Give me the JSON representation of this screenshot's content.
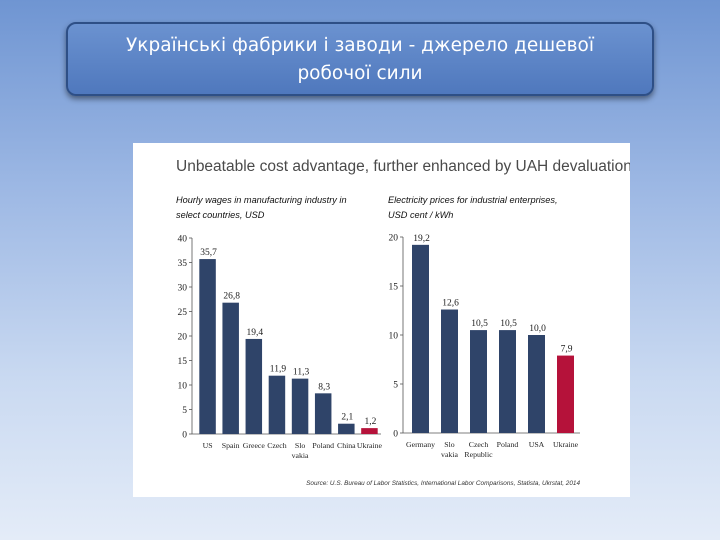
{
  "slide": {
    "title_line1": "Українські фабрики і заводи - джерело дешевої",
    "title_line2": "робочої сили"
  },
  "figure": {
    "headline": "Unbeatable cost advantage, further enhanced by UAH devaluation",
    "source": "Source: U.S. Bureau of Labor Statistics, International Labor Comparisons, Statista, Ukrstat, 2014"
  },
  "colors": {
    "navy": "#2f4469",
    "red": "#b5123a",
    "headline": "#4a4a4a"
  },
  "chart_data": [
    {
      "type": "bar",
      "title_line1": "Hourly wages in manufacturing industry in",
      "title_line2": "select countries, USD",
      "categories": [
        "US",
        "Spain",
        "Greece",
        "Czech",
        "Slovakia",
        "Poland",
        "China",
        "Ukraine"
      ],
      "category_lines": [
        [
          "US"
        ],
        [
          "Spain"
        ],
        [
          "Greece"
        ],
        [
          "Czech"
        ],
        [
          "Slo",
          "vakia"
        ],
        [
          "Poland"
        ],
        [
          "China"
        ],
        [
          "Ukraine"
        ]
      ],
      "values": [
        35.7,
        26.8,
        19.4,
        11.9,
        11.3,
        8.3,
        2.1,
        1.2
      ],
      "value_labels": [
        "35,7",
        "26,8",
        "19,4",
        "11,9",
        "11,3",
        "8,3",
        "2,1",
        "1,2"
      ],
      "highlight_index": 7,
      "ylim": [
        0,
        40
      ],
      "yticks": [
        0,
        5,
        10,
        15,
        20,
        25,
        30,
        35,
        40
      ]
    },
    {
      "type": "bar",
      "title_line1": "Electricity prices for industrial enterprises,",
      "title_line2": "USD cent / kWh",
      "categories": [
        "Germany",
        "Slovakia",
        "Czech Republic",
        "Poland",
        "USA",
        "Ukraine"
      ],
      "category_lines": [
        [
          "Germany"
        ],
        [
          "Slo",
          "vakia"
        ],
        [
          "Czech",
          "Republic"
        ],
        [
          "Poland"
        ],
        [
          "USA"
        ],
        [
          "Ukraine"
        ]
      ],
      "values": [
        19.2,
        12.6,
        10.5,
        10.5,
        10.0,
        7.9
      ],
      "value_labels": [
        "19,2",
        "12,6",
        "10,5",
        "10,5",
        "10,0",
        "7,9"
      ],
      "highlight_index": 5,
      "ylim": [
        0,
        20
      ],
      "yticks": [
        0,
        5,
        10,
        15,
        20
      ]
    }
  ]
}
